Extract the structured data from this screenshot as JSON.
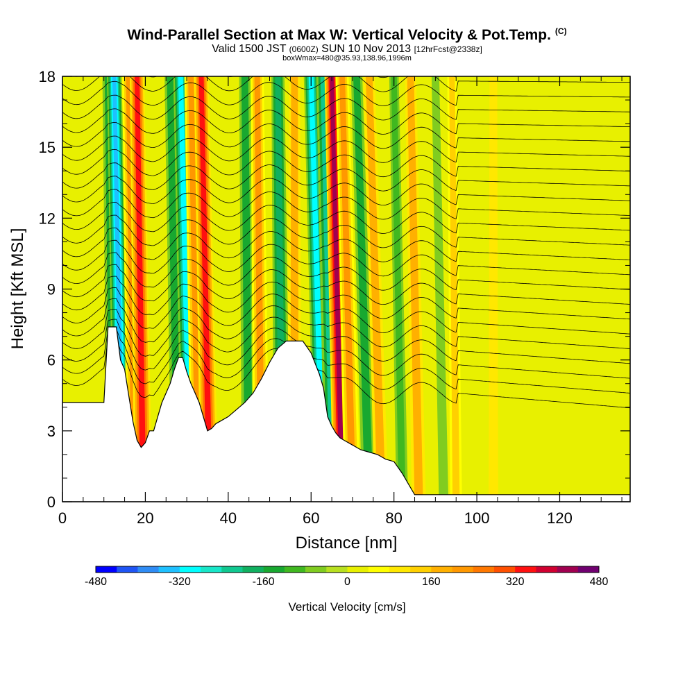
{
  "header": {
    "title": "Wind-Parallel Section at Max W: Vertical Velocity & Pot.Temp.",
    "copyright_mark": "(C)",
    "valid_prefix": "Valid 1500 JST",
    "valid_utc": "(0600Z)",
    "valid_date": "SUN 10 Nov 2013",
    "forecast": "[12hrFcst@2338z]",
    "box_info": "boxWmax=480@35.93,138.96,1996m"
  },
  "chart_data": {
    "type": "heatmap",
    "xlabel": "Distance [nm]",
    "ylabel": "Height [Kft MSL]",
    "xlim": [
      0,
      137
    ],
    "ylim": [
      0,
      18
    ],
    "x_ticks": [
      0,
      20,
      40,
      60,
      80,
      100,
      120
    ],
    "y_ticks": [
      0,
      3,
      6,
      9,
      12,
      15,
      18
    ],
    "x_tick_labels": [
      "0",
      "20",
      "40",
      "60",
      "80",
      "100",
      "120"
    ],
    "y_tick_labels": [
      "0",
      "3",
      "6",
      "9",
      "12",
      "15",
      "18"
    ],
    "grid": false,
    "colorbar": {
      "title": "Vertical Velocity [cm/s]",
      "min": -480,
      "max": 480,
      "step": 40,
      "tick_values": [
        -480,
        -320,
        -160,
        0,
        160,
        320,
        480
      ],
      "tick_labels": [
        "-480",
        "-320",
        "-160",
        "0",
        "160",
        "320",
        "480"
      ],
      "colors": [
        "#0000ff",
        "#1f55f5",
        "#2f8cf5",
        "#1fc0ff",
        "#00ffff",
        "#18e6c8",
        "#10c890",
        "#10b060",
        "#18a830",
        "#40b820",
        "#80cc20",
        "#b8e020",
        "#e8f000",
        "#ffff00",
        "#ffe800",
        "#ffd000",
        "#ffb000",
        "#ff9800",
        "#ff7800",
        "#ff5000",
        "#ff1010",
        "#d00030",
        "#a00050",
        "#700070"
      ]
    },
    "terrain_profile": {
      "x": [
        0,
        10,
        11,
        12,
        13,
        14,
        15,
        16,
        17,
        18,
        19,
        20,
        21,
        22,
        23,
        24,
        25,
        26,
        27,
        28,
        29,
        30,
        31,
        32,
        33,
        34,
        35,
        36,
        37,
        38,
        40,
        42,
        44,
        46,
        48,
        50,
        52,
        54,
        56,
        58,
        60,
        62,
        63,
        64,
        65,
        66,
        67,
        68,
        70,
        72,
        74,
        76,
        78,
        80,
        82,
        84,
        85,
        86,
        88,
        90,
        137
      ],
      "y": [
        4.2,
        4.2,
        7.4,
        7.4,
        7.4,
        6.0,
        5.6,
        4.5,
        3.4,
        2.6,
        2.3,
        2.5,
        3.0,
        3.0,
        3.6,
        4.2,
        4.6,
        5.0,
        5.6,
        6.1,
        6.1,
        5.5,
        5.0,
        4.6,
        4.2,
        3.6,
        3.0,
        3.1,
        3.3,
        3.4,
        3.6,
        3.9,
        4.2,
        4.6,
        5.2,
        5.9,
        6.5,
        6.8,
        6.8,
        6.8,
        6.3,
        5.4,
        4.8,
        3.6,
        3.2,
        2.9,
        2.7,
        2.6,
        2.4,
        2.2,
        2.1,
        2.0,
        1.8,
        1.7,
        1.2,
        0.6,
        0.3,
        0.3,
        0.3,
        0.3,
        0.3
      ]
    },
    "vertical_velocity_bands": [
      {
        "x_bottom": 12.5,
        "x_top": 11,
        "value": -160
      },
      {
        "x_bottom": 14.5,
        "x_top": 12.5,
        "value": -360
      },
      {
        "x_bottom": 17.5,
        "x_top": 16,
        "value": 200
      },
      {
        "x_bottom": 19.5,
        "x_top": 18,
        "value": 320
      },
      {
        "x_bottom": 28,
        "x_top": 26,
        "value": -160
      },
      {
        "x_bottom": 31,
        "x_top": 28.5,
        "value": -320
      },
      {
        "x_bottom": 33,
        "x_top": 31,
        "value": 200
      },
      {
        "x_bottom": 35.5,
        "x_top": 33.5,
        "value": 320
      },
      {
        "x_bottom": 45,
        "x_top": 44,
        "value": -160
      },
      {
        "x_bottom": 48,
        "x_top": 47,
        "value": 200
      },
      {
        "x_bottom": 53,
        "x_top": 52,
        "value": -200
      },
      {
        "x_bottom": 56,
        "x_top": 56,
        "value": 160
      },
      {
        "x_bottom": 63,
        "x_top": 60,
        "value": -320
      },
      {
        "x_bottom": 65.5,
        "x_top": 63,
        "value": -240
      },
      {
        "x_bottom": 67.5,
        "x_top": 65,
        "value": 400
      },
      {
        "x_bottom": 70,
        "x_top": 67.5,
        "value": 200
      },
      {
        "x_bottom": 74,
        "x_top": 71,
        "value": -160
      },
      {
        "x_bottom": 77,
        "x_top": 74,
        "value": 160
      },
      {
        "x_bottom": 82,
        "x_top": 80,
        "value": -120
      },
      {
        "x_bottom": 86,
        "x_top": 84,
        "value": 160
      },
      {
        "x_bottom": 92,
        "x_top": 90,
        "value": -80
      },
      {
        "x_bottom": 95,
        "x_top": 94,
        "value": 120
      },
      {
        "x_bottom": 104,
        "x_top": 104,
        "value": 80
      }
    ],
    "potential_temperature_contours": {
      "count": 24,
      "bottom_height": 4.6,
      "spacing": 0.6
    }
  }
}
